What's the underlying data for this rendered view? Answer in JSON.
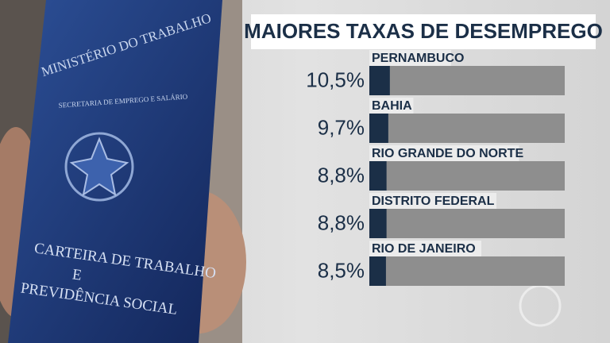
{
  "chart_data": {
    "type": "hbar",
    "title": "MAIORES TAXAS DE DESEMPREGO",
    "categories": [
      "PERNAMBUCO",
      "BAHIA",
      "RIO GRANDE DO NORTE",
      "DISTRITO FEDERAL",
      "RIO DE JANEIRO"
    ],
    "values": [
      10.5,
      9.7,
      8.8,
      8.8,
      8.5
    ],
    "value_labels": [
      "10,5%",
      "9,7%",
      "8,8%",
      "8,8%",
      "8,5%"
    ],
    "color": "#1b2f47",
    "track_color": "#8e8e8e",
    "xlim": [
      0,
      100
    ]
  },
  "photo": {
    "texts": [
      "MINISTÉRIO DO TRABALHO",
      "SECRETARIA DE EMPREGO E SALÁRIO",
      "CARTEIRA DE TRABALHO",
      "E",
      "PREVIDÊNCIA SOCIAL"
    ]
  }
}
